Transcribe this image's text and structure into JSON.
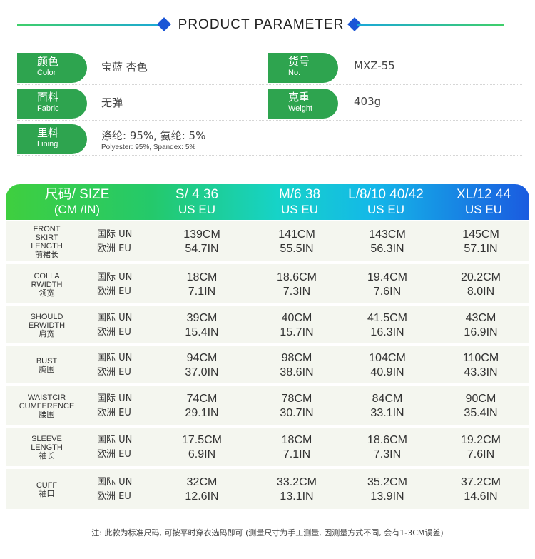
{
  "header": {
    "title": "PRODUCT PARAMETER"
  },
  "params": {
    "color_label_cn": "颜色",
    "color_label_en": "Color",
    "color_value": "宝蓝  杏色",
    "item_label_cn": "货号",
    "item_label_en": "No.",
    "item_value": "MXZ-55",
    "fabric_label_cn": "面料",
    "fabric_label_en": "Fabric",
    "fabric_value": "无弹",
    "weight_label_cn": "克重",
    "weight_label_en": "Weight",
    "weight_value": "403g",
    "lining_label_cn": "里料",
    "lining_label_en": "Lining",
    "lining_value": "涤纶: 95%,  氨纶: 5%",
    "lining_sub": "Polyester: 95%, Spandex: 5%"
  },
  "table": {
    "head": [
      {
        "a": "尺码/ SIZE",
        "b": "(CM /IN)"
      },
      {
        "a": "S/ 4   36",
        "b": "US   EU"
      },
      {
        "a": "M/6   38",
        "b": "US   EU"
      },
      {
        "a": "L/8/10  40/42",
        "b": "US   EU"
      },
      {
        "a": "XL/12  44",
        "b": "US   EU"
      }
    ],
    "std_un": "国际  UN",
    "std_eu": "欧洲  EU",
    "rows": [
      {
        "name": "FRONT SKIRT LENGTH",
        "name_lines": [
          "FRONT",
          "SKIRT",
          "LENGTH"
        ],
        "zh": "前裙长",
        "cm": [
          "139CM",
          "141CM",
          "143CM",
          "145CM"
        ],
        "in": [
          "54.7IN",
          "55.5IN",
          "56.3IN",
          "57.1IN"
        ]
      },
      {
        "name": "COLLARWIDTH",
        "name_lines": [
          "COLLA",
          "RWIDTH"
        ],
        "zh": "领宽",
        "cm": [
          "18CM",
          "18.6CM",
          "19.4CM",
          "20.2CM"
        ],
        "in": [
          "7.1IN",
          "7.3IN",
          "7.6IN",
          "8.0IN"
        ]
      },
      {
        "name": "SHOULDERWIDTH",
        "name_lines": [
          "SHOULD",
          "ERWIDTH"
        ],
        "zh": "肩宽",
        "cm": [
          "39CM",
          "40CM",
          "41.5CM",
          "43CM"
        ],
        "in": [
          "15.4IN",
          "15.7IN",
          "16.3IN",
          "16.9IN"
        ]
      },
      {
        "name": "BUST",
        "name_lines": [
          "BUST"
        ],
        "zh": "胸围",
        "cm": [
          "94CM",
          "98CM",
          "104CM",
          "110CM"
        ],
        "in": [
          "37.0IN",
          "38.6IN",
          "40.9IN",
          "43.3IN"
        ]
      },
      {
        "name": "WAISTCIRCUMFERENCE",
        "name_lines": [
          "WAISTCIR",
          "CUMFERENCE"
        ],
        "zh": "腰围",
        "cm": [
          "74CM",
          "78CM",
          "84CM",
          "90CM"
        ],
        "in": [
          "29.1IN",
          "30.7IN",
          "33.1IN",
          "35.4IN"
        ]
      },
      {
        "name": "SLEEVE LENGTH",
        "name_lines": [
          "SLEEVE",
          "LENGTH"
        ],
        "zh": "袖长",
        "cm": [
          "17.5CM",
          "18CM",
          "18.6CM",
          "19.2CM"
        ],
        "in": [
          "6.9IN",
          "7.1IN",
          "7.3IN",
          "7.6IN"
        ]
      },
      {
        "name": "CUFF",
        "name_lines": [
          "CUFF"
        ],
        "zh": "袖口",
        "cm": [
          "32CM",
          "33.2CM",
          "35.2CM",
          "37.2CM"
        ],
        "in": [
          "12.6IN",
          "13.1IN",
          "13.9IN",
          "14.6IN"
        ]
      }
    ]
  },
  "note": "注: 此款为标准尺码, 可按平时穿衣选码即可 (测量尺寸为手工测量, 因测量方式不同, 会有1-3CM误差)"
}
